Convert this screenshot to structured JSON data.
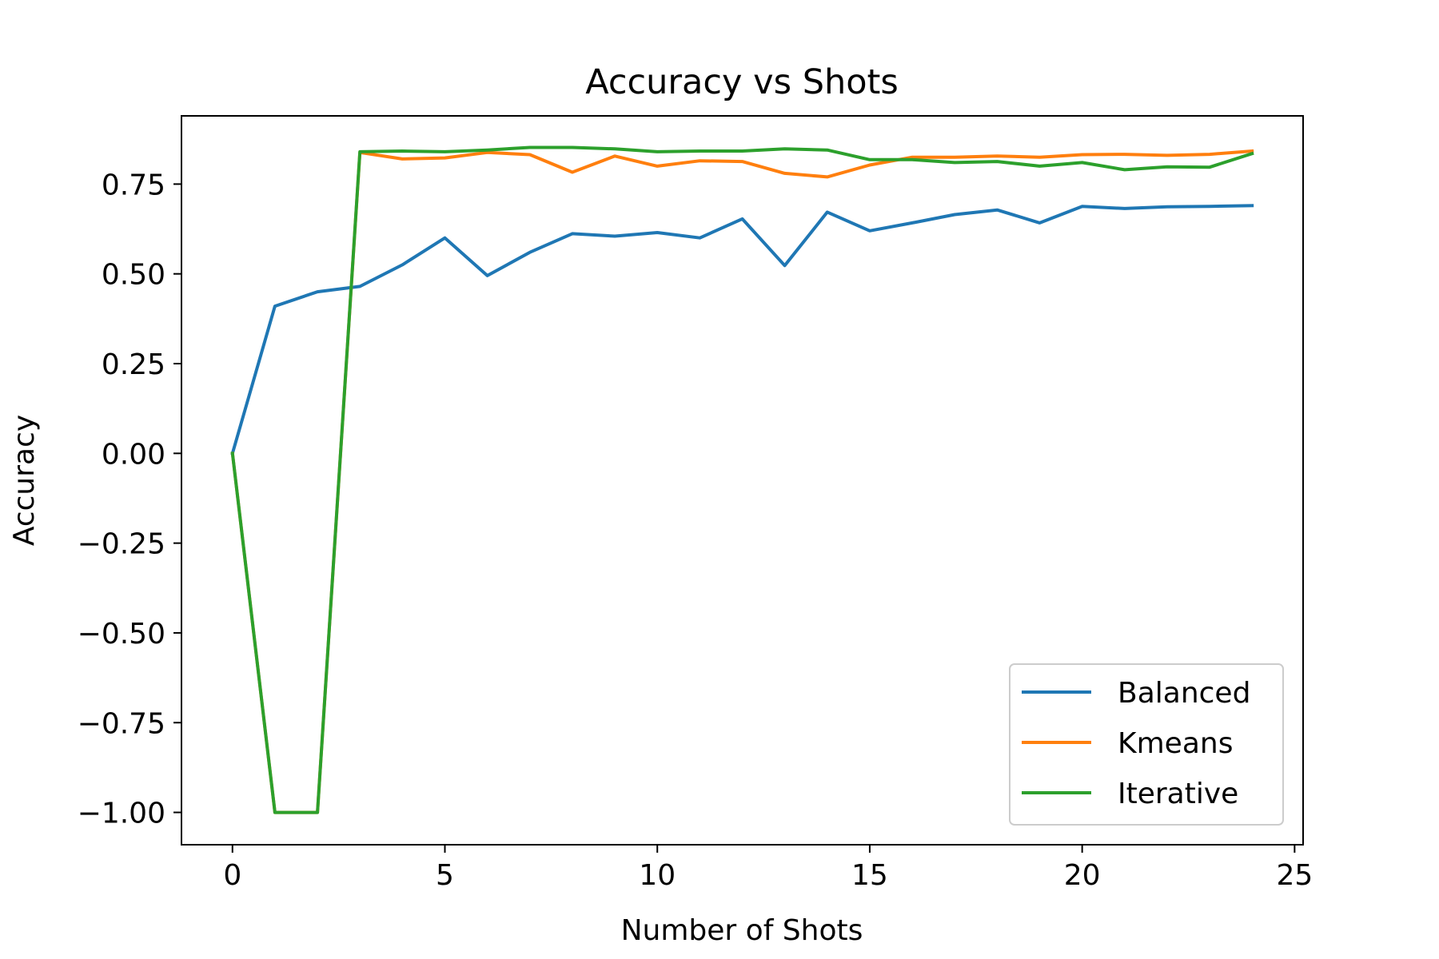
{
  "chart_data": {
    "type": "line",
    "title": "Accuracy vs Shots",
    "xlabel": "Number of Shots",
    "ylabel": "Accuracy",
    "xlim": [
      -1.2,
      25.2
    ],
    "ylim": [
      -1.09,
      0.94
    ],
    "xticks": [
      0,
      5,
      10,
      15,
      20,
      25
    ],
    "xtick_labels": [
      "0",
      "5",
      "10",
      "15",
      "20",
      "25"
    ],
    "yticks": [
      -1.0,
      -0.75,
      -0.5,
      -0.25,
      0.0,
      0.25,
      0.5,
      0.75
    ],
    "ytick_labels": [
      "−1.00",
      "−0.75",
      "−0.50",
      "−0.25",
      "0.00",
      "0.25",
      "0.50",
      "0.75"
    ],
    "grid": false,
    "legend_position": "lower-right",
    "x": [
      0,
      1,
      2,
      3,
      4,
      5,
      6,
      7,
      8,
      9,
      10,
      11,
      12,
      13,
      14,
      15,
      16,
      17,
      18,
      19,
      20,
      21,
      22,
      23,
      24
    ],
    "series": [
      {
        "name": "Balanced",
        "color": "#1f77b4",
        "values": [
          0.0,
          0.41,
          0.45,
          0.465,
          0.525,
          0.6,
          0.495,
          0.56,
          0.612,
          0.605,
          0.615,
          0.6,
          0.653,
          0.523,
          0.672,
          0.62,
          0.642,
          0.665,
          0.678,
          0.642,
          0.688,
          0.682,
          0.687,
          0.688,
          0.69
        ]
      },
      {
        "name": "Kmeans",
        "color": "#ff7f0e",
        "values": [
          0.0,
          -1.0,
          -1.0,
          0.838,
          0.82,
          0.823,
          0.838,
          0.832,
          0.783,
          0.828,
          0.8,
          0.815,
          0.813,
          0.78,
          0.77,
          0.803,
          0.825,
          0.825,
          0.828,
          0.825,
          0.832,
          0.833,
          0.83,
          0.833,
          0.842
        ]
      },
      {
        "name": "Iterative",
        "color": "#2ca02c",
        "values": [
          0.0,
          -1.0,
          -1.0,
          0.84,
          0.842,
          0.84,
          0.845,
          0.852,
          0.852,
          0.848,
          0.84,
          0.842,
          0.842,
          0.848,
          0.845,
          0.818,
          0.818,
          0.81,
          0.813,
          0.8,
          0.81,
          0.79,
          0.798,
          0.797,
          0.835
        ]
      }
    ]
  }
}
